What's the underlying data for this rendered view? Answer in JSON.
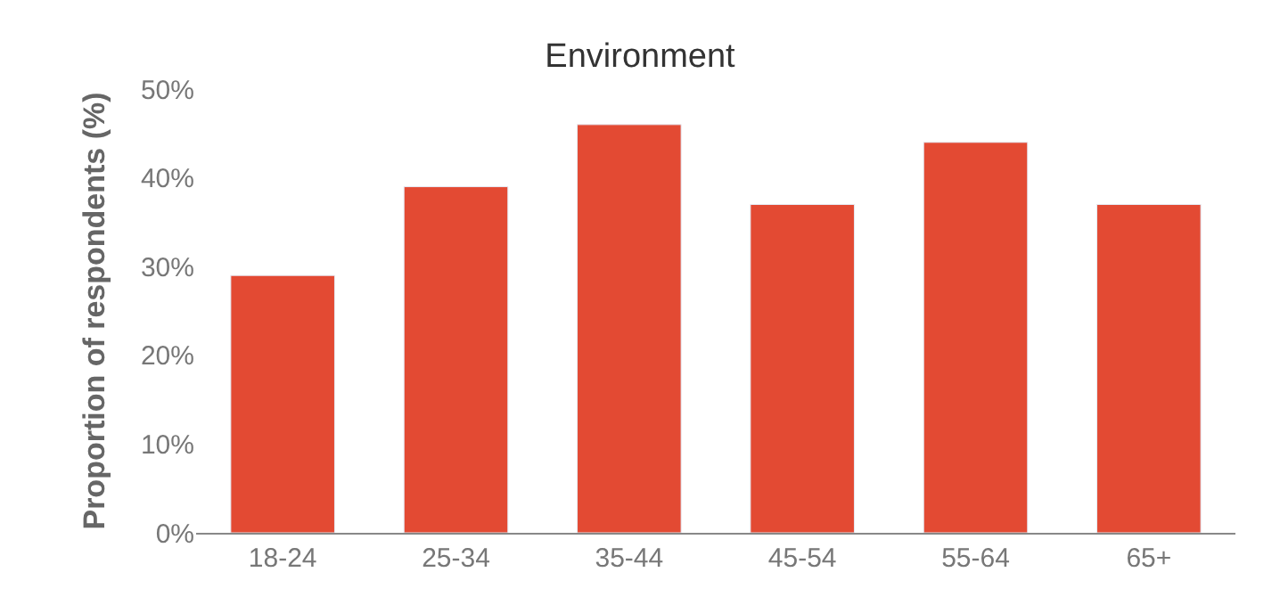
{
  "chart_data": {
    "type": "bar",
    "title": "Environment",
    "ylabel": "Proportion of respondents (%)",
    "categories": [
      "18-24",
      "25-34",
      "35-44",
      "45-54",
      "55-64",
      "65+"
    ],
    "values": [
      29,
      39,
      46,
      37,
      44,
      37
    ],
    "color": "#e34a33",
    "ylim": [
      0,
      50
    ],
    "yticks": [
      {
        "value": 0,
        "label": "0%"
      },
      {
        "value": 10,
        "label": "10%"
      },
      {
        "value": 20,
        "label": "20%"
      },
      {
        "value": 30,
        "label": "30%"
      },
      {
        "value": 40,
        "label": "40%"
      },
      {
        "value": 50,
        "label": "50%"
      }
    ]
  }
}
